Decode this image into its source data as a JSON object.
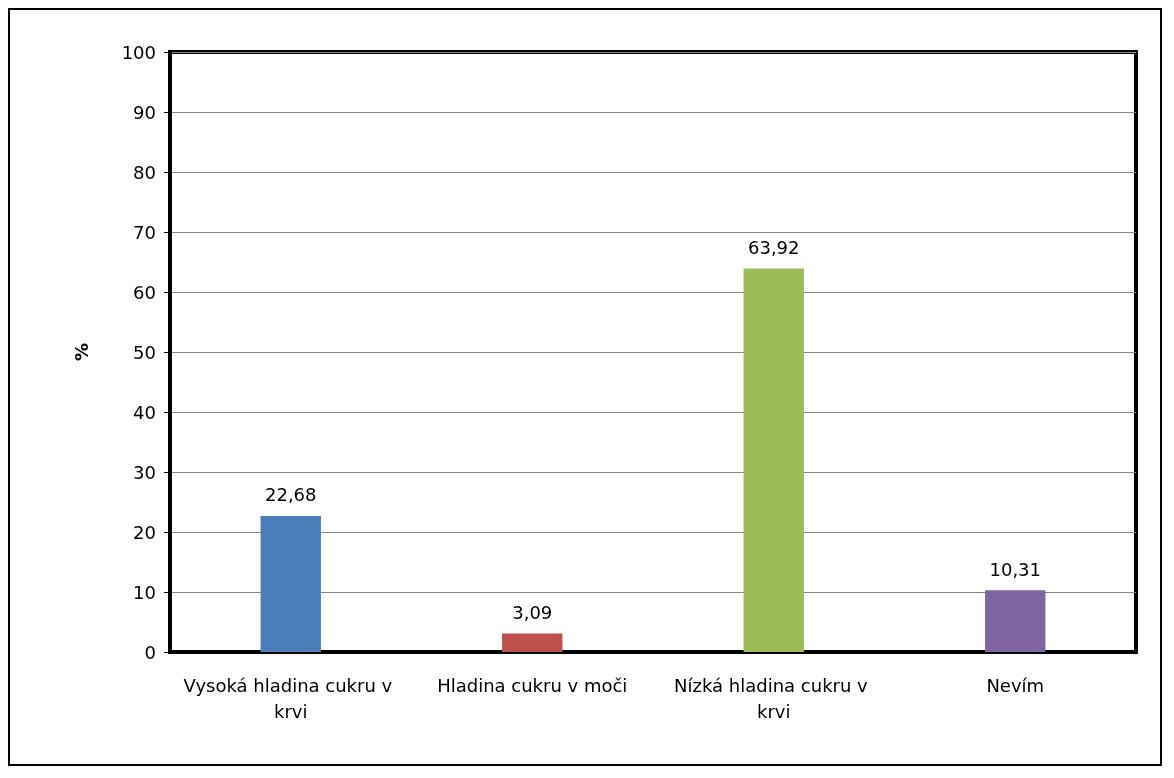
{
  "chart_data": {
    "type": "bar",
    "ylabel": "%",
    "categories": [
      "Vysoká hladina cukru v krvi",
      "Hladina cukru v moči",
      "Nízká hladina cukru v krvi",
      "Nevím"
    ],
    "values": [
      22.68,
      3.09,
      63.92,
      10.31
    ],
    "value_labels": [
      "22,68",
      "3,09",
      "63,92",
      "10,31"
    ],
    "colors": [
      "#4a7ebb",
      "#c0504d",
      "#9bbb59",
      "#8064a2"
    ],
    "ylim": [
      0,
      100
    ],
    "yticks": [
      0,
      10,
      20,
      30,
      40,
      50,
      60,
      70,
      80,
      90,
      100
    ],
    "grid": "y"
  }
}
